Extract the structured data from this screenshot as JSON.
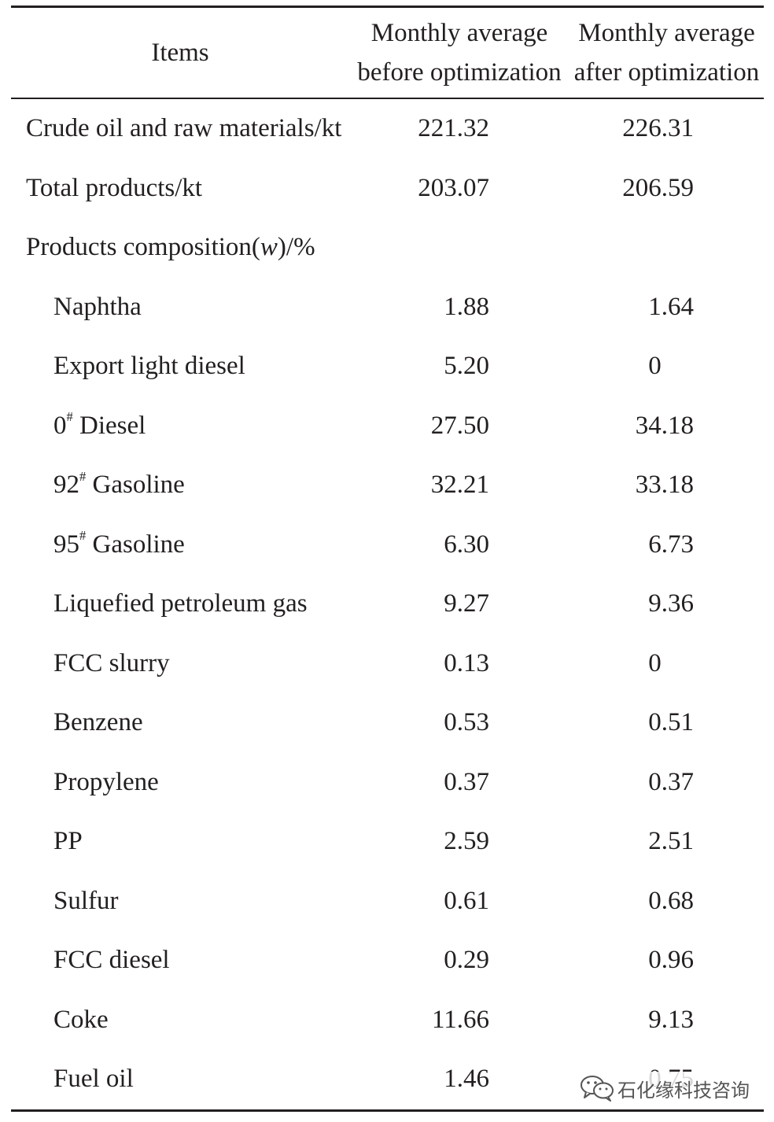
{
  "table": {
    "header": {
      "items": "Items",
      "before": {
        "line1": "Monthly average",
        "line2": "before optimization"
      },
      "after": {
        "line1": "Monthly average",
        "line2": "after optimization"
      }
    },
    "rows": [
      {
        "label": "Crude oil and raw materials/kt",
        "before": "221.32",
        "after": "226.31"
      },
      {
        "label": "Total products/kt",
        "before": "203.07",
        "after": "206.59"
      }
    ],
    "composition": {
      "label": {
        "text": "Products composition(",
        "var": "w",
        "suffix": ")/%"
      },
      "items": [
        {
          "label": "Naphtha",
          "before": "1.88",
          "after": "1.64"
        },
        {
          "label": "Export light diesel",
          "before": "5.20",
          "after": "0"
        },
        {
          "label": "0",
          "sup": "#",
          "suffix": "Diesel",
          "before": "27.50",
          "after": "34.18"
        },
        {
          "label": "92",
          "sup": "#",
          "suffix": "Gasoline",
          "before": "32.21",
          "after": "33.18"
        },
        {
          "label": "95",
          "sup": "#",
          "suffix": "Gasoline",
          "before": "6.30",
          "after": "6.73"
        },
        {
          "label": "Liquefied petroleum gas",
          "before": "9.27",
          "after": "9.36"
        },
        {
          "label": "FCC slurry",
          "before": "0.13",
          "after": "0"
        },
        {
          "label": "Benzene",
          "before": "0.53",
          "after": "0.51"
        },
        {
          "label": "Propylene",
          "before": "0.37",
          "after": "0.37"
        },
        {
          "label": "PP",
          "before": "2.59",
          "after": "2.51"
        },
        {
          "label": "Sulfur",
          "before": "0.61",
          "after": "0.68"
        },
        {
          "label": "FCC diesel",
          "before": "0.29",
          "after": "0.96"
        },
        {
          "label": "Coke",
          "before": "11.66",
          "after": "9.13"
        },
        {
          "label": "Fuel oil",
          "before": "1.46",
          "after": "0.75"
        }
      ]
    }
  },
  "watermark": {
    "icon": "wechat-icon",
    "text": "石化缘科技咨询"
  },
  "colors": {
    "text": "#231f20",
    "watermark": "#555555"
  }
}
